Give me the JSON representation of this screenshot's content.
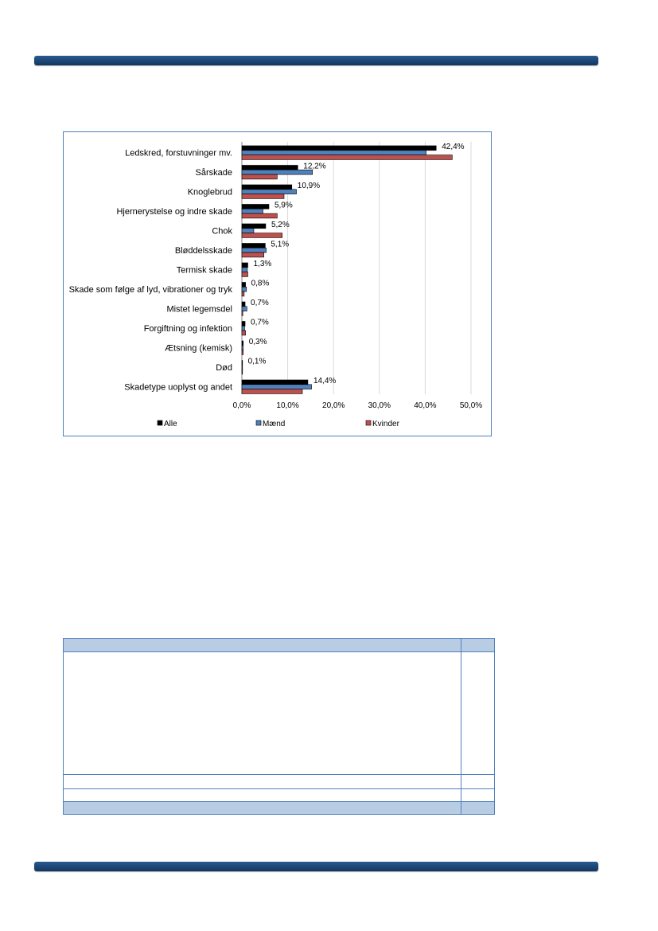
{
  "colors": {
    "accent": "#1f4e79",
    "border": "#4f81bd",
    "table_header": "#b8cce4"
  },
  "chart_data": {
    "type": "bar",
    "orientation": "horizontal",
    "categories": [
      "Ledskred, forstuvninger mv.",
      "Sårskade",
      "Knoglebrud",
      "Hjernerystelse og indre skade",
      "Chok",
      "Bløddelsskade",
      "Termisk skade",
      "Skade som følge af lyd, vibrationer og tryk",
      "Mistet legemsdel",
      "Forgiftning og infektion",
      "Ætsning (kemisk)",
      "Død",
      "Skadetype uoplyst og andet"
    ],
    "series": [
      {
        "name": "Alle",
        "color": "#000000",
        "values": [
          42.4,
          12.2,
          10.9,
          5.9,
          5.2,
          5.1,
          1.3,
          0.8,
          0.7,
          0.7,
          0.3,
          0.1,
          14.4
        ]
      },
      {
        "name": "Mænd",
        "color": "#4f81bd",
        "values": [
          40.2,
          15.4,
          11.9,
          4.6,
          2.6,
          5.3,
          1.2,
          1.0,
          1.1,
          0.6,
          0.3,
          0.1,
          15.2
        ]
      },
      {
        "name": "Kvinder",
        "color": "#c0504d",
        "values": [
          45.9,
          7.7,
          9.2,
          7.7,
          8.8,
          4.8,
          1.3,
          0.5,
          0.2,
          0.8,
          0.3,
          0.1,
          13.2
        ]
      }
    ],
    "data_labels": [
      "42,4%",
      "12,2%",
      "10,9%",
      "5,9%",
      "5,2%",
      "5,1%",
      "1,3%",
      "0,8%",
      "0,7%",
      "0,7%",
      "0,3%",
      "0,1%",
      "14,4%"
    ],
    "xticks": [
      "0,0%",
      "10,0%",
      "20,0%",
      "30,0%",
      "40,0%",
      "50,0%"
    ],
    "xlim": [
      0,
      50
    ],
    "grid": true,
    "legend_position": "bottom"
  }
}
